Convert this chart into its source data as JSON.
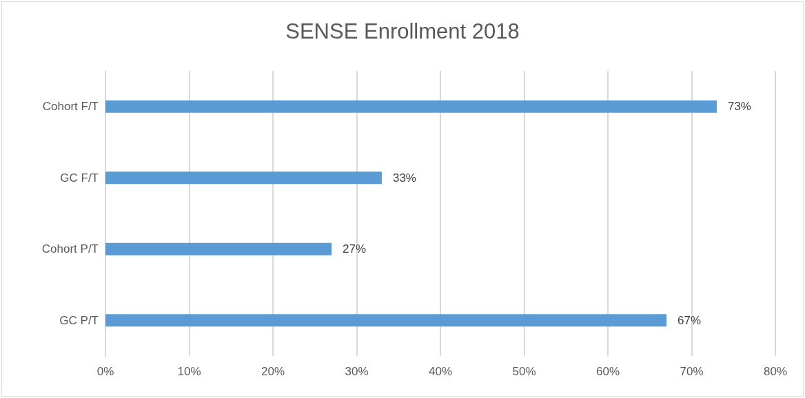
{
  "chart_data": {
    "type": "bar",
    "title": "SENSE Enrollment 2018",
    "orientation": "horizontal",
    "categories": [
      "Cohort F/T",
      "GC F/T",
      "Cohort P/T",
      "GC P/T"
    ],
    "values": [
      73,
      33,
      27,
      67
    ],
    "value_labels": [
      "73%",
      "33%",
      "27%",
      "67%"
    ],
    "color": "#5b9bd5",
    "xlim": [
      0,
      80
    ],
    "xticks": [
      {
        "value": 0,
        "label": "0%"
      },
      {
        "value": 10,
        "label": "10%"
      },
      {
        "value": 20,
        "label": "20%"
      },
      {
        "value": 30,
        "label": "30%"
      },
      {
        "value": 40,
        "label": "40%"
      },
      {
        "value": 50,
        "label": "50%"
      },
      {
        "value": 60,
        "label": "60%"
      },
      {
        "value": 70,
        "label": "70%"
      },
      {
        "value": 80,
        "label": "80%"
      }
    ],
    "grid": "x"
  }
}
